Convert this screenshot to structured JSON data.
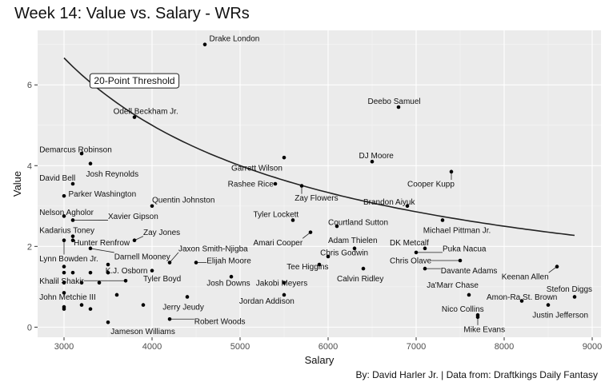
{
  "chart_data": {
    "type": "scatter",
    "title": "Week 14: Value vs. Salary - WRs",
    "caption": "By: David Harler Jr. | Data from: Draftkings Daily Fantasy",
    "xlabel": "Salary",
    "ylabel": "Value",
    "xlim": [
      2700,
      9100
    ],
    "ylim": [
      -0.25,
      7.35
    ],
    "x_ticks": [
      3000,
      4000,
      5000,
      6000,
      7000,
      8000,
      9000
    ],
    "y_ticks": [
      0,
      2,
      4,
      6
    ],
    "grid": true,
    "threshold": {
      "label": "20-Point Threshold",
      "points": 20,
      "x_range": [
        3000,
        8800
      ],
      "label_at": [
        3800,
        6.1
      ]
    },
    "points": [
      {
        "name": "Drake London",
        "x": 4600,
        "y": 7.0,
        "lx": 4650,
        "ly": 7.15
      },
      {
        "name": "Deebo Samuel",
        "x": 6800,
        "y": 5.45,
        "lx": 6450,
        "ly": 5.6
      },
      {
        "name": "Odell Beckham Jr.",
        "x": 3800,
        "y": 5.2,
        "lx": 3560,
        "ly": 5.35
      },
      {
        "name": "Demarcus Robinson",
        "x": 3200,
        "y": 4.3,
        "lx": 2720,
        "ly": 4.4
      },
      {
        "name": "DJ Moore",
        "x": 6500,
        "y": 4.1,
        "lx": 6350,
        "ly": 4.25
      },
      {
        "name": "Garrett Wilson",
        "x": 5500,
        "y": 4.2,
        "lx": 4900,
        "ly": 3.95
      },
      {
        "name": "Josh Reynolds",
        "x": 3300,
        "y": 4.05,
        "lx": 3250,
        "ly": 3.8
      },
      {
        "name": "Cooper Kupp",
        "x": 7400,
        "y": 3.85,
        "lx": 6900,
        "ly": 3.55
      },
      {
        "name": "David Bell",
        "x": 3100,
        "y": 3.55,
        "lx": 2720,
        "ly": 3.7
      },
      {
        "name": "Rashee Rice",
        "x": 5400,
        "y": 3.55,
        "lx": 4860,
        "ly": 3.55
      },
      {
        "name": "Zay Flowers",
        "x": 5700,
        "y": 3.5,
        "lx": 5620,
        "ly": 3.2
      },
      {
        "name": "Parker Washington",
        "x": 3000,
        "y": 3.25,
        "lx": 3050,
        "ly": 3.3
      },
      {
        "name": "Quentin Johnston",
        "x": 4000,
        "y": 3.0,
        "lx": 4000,
        "ly": 3.15
      },
      {
        "name": "Brandon Aiyuk",
        "x": 6900,
        "y": 3.0,
        "lx": 6400,
        "ly": 3.1
      },
      {
        "name": "Nelson Agholor",
        "x": 3000,
        "y": 2.75,
        "lx": 2720,
        "ly": 2.85
      },
      {
        "name": "Xavier Gipson",
        "x": 3100,
        "y": 2.65,
        "lx": 3500,
        "ly": 2.75
      },
      {
        "name": "Tyler Lockett",
        "x": 5600,
        "y": 2.65,
        "lx": 5150,
        "ly": 2.8
      },
      {
        "name": "Michael Pittman Jr.",
        "x": 7300,
        "y": 2.65,
        "lx": 7080,
        "ly": 2.4
      },
      {
        "name": "Courtland Sutton",
        "x": 6100,
        "y": 2.5,
        "lx": 6000,
        "ly": 2.6
      },
      {
        "name": "Kadarius Toney",
        "x": 3100,
        "y": 2.25,
        "lx": 2720,
        "ly": 2.4
      },
      {
        "name": "Zay Jones",
        "x": 3800,
        "y": 2.15,
        "lx": 3900,
        "ly": 2.35
      },
      {
        "name": "Amari Cooper",
        "x": 5800,
        "y": 2.35,
        "lx": 5150,
        "ly": 2.1
      },
      {
        "name": "Adam Thielen",
        "x": 6300,
        "y": 1.95,
        "lx": 6000,
        "ly": 2.15
      },
      {
        "name": "DK Metcalf",
        "x": 7100,
        "y": 1.95,
        "lx": 6700,
        "ly": 2.1
      },
      {
        "name": "Hunter Renfrow",
        "x": 3100,
        "y": 2.15,
        "lx": 3110,
        "ly": 2.1
      },
      {
        "name": "Puka Nacua",
        "x": 7000,
        "y": 1.85,
        "lx": 7300,
        "ly": 1.95
      },
      {
        "name": "Jaxon Smith-Njigba",
        "x": 4200,
        "y": 1.6,
        "lx": 4300,
        "ly": 1.95
      },
      {
        "name": "Chris Godwin",
        "x": 6000,
        "y": 1.75,
        "lx": 5910,
        "ly": 1.85
      },
      {
        "name": "Darnell Mooney",
        "x": 3300,
        "y": 1.95,
        "lx": 3570,
        "ly": 1.75
      },
      {
        "name": "Lynn Bowden Jr.",
        "x": 3000,
        "y": 2.15,
        "lx": 2720,
        "ly": 1.7
      },
      {
        "name": "Elijah Moore",
        "x": 4500,
        "y": 1.6,
        "lx": 4620,
        "ly": 1.65
      },
      {
        "name": "Chris Olave",
        "x": 7500,
        "y": 1.65,
        "lx": 6700,
        "ly": 1.65
      },
      {
        "name": "Tee Higgins",
        "x": 5900,
        "y": 1.55,
        "lx": 5530,
        "ly": 1.5
      },
      {
        "name": "K.J. Osborn",
        "x": 3500,
        "y": 1.55,
        "lx": 3470,
        "ly": 1.4
      },
      {
        "name": "Davante Adams",
        "x": 7100,
        "y": 1.45,
        "lx": 7280,
        "ly": 1.4
      },
      {
        "name": "Keenan Allen",
        "x": 8600,
        "y": 1.5,
        "lx": 7970,
        "ly": 1.25
      },
      {
        "name": "Calvin Ridley",
        "x": 6400,
        "y": 1.45,
        "lx": 6100,
        "ly": 1.2
      },
      {
        "name": "Tyler Boyd",
        "x": 4000,
        "y": 1.4,
        "lx": 3900,
        "ly": 1.2
      },
      {
        "name": "Khalil Shakir",
        "x": 3700,
        "y": 1.15,
        "lx": 2720,
        "ly": 1.15
      },
      {
        "name": "Josh Downs",
        "x": 4900,
        "y": 1.25,
        "lx": 4620,
        "ly": 1.1
      },
      {
        "name": "Jakobi Meyers",
        "x": 5500,
        "y": 1.1,
        "lx": 5180,
        "ly": 1.1
      },
      {
        "name": "Ja'Marr Chase",
        "x": 7600,
        "y": 0.8,
        "lx": 7120,
        "ly": 1.05
      },
      {
        "name": "Stefon Diggs",
        "x": 8800,
        "y": 0.75,
        "lx": 8480,
        "ly": 0.95
      },
      {
        "name": "Amon-Ra St. Brown",
        "x": 8200,
        "y": 0.65,
        "lx": 7800,
        "ly": 0.75
      },
      {
        "name": "John Metchie III",
        "x": 3000,
        "y": 0.85,
        "lx": 2720,
        "ly": 0.75
      },
      {
        "name": "Jordan Addison",
        "x": 5500,
        "y": 0.8,
        "lx": 4990,
        "ly": 0.65
      },
      {
        "name": "Jerry Jeudy",
        "x": 4400,
        "y": 0.75,
        "lx": 4120,
        "ly": 0.5
      },
      {
        "name": "Nico Collins",
        "x": 7700,
        "y": 0.25,
        "lx": 7290,
        "ly": 0.45
      },
      {
        "name": "Justin Jefferson",
        "x": 8500,
        "y": 0.55,
        "lx": 8320,
        "ly": 0.3
      },
      {
        "name": "Robert Woods",
        "x": 4200,
        "y": 0.2,
        "lx": 4480,
        "ly": 0.15
      },
      {
        "name": "Jameson Williams",
        "x": 3500,
        "y": 0.12,
        "lx": 3530,
        "ly": -0.1
      },
      {
        "name": "Mike Evans",
        "x": 7700,
        "y": 0.3,
        "lx": 7540,
        "ly": -0.05
      }
    ],
    "extra_points": [
      {
        "x": 3000,
        "y": 1.5
      },
      {
        "x": 3000,
        "y": 1.35
      },
      {
        "x": 3000,
        "y": 1.1
      },
      {
        "x": 3000,
        "y": 0.5
      },
      {
        "x": 3000,
        "y": 0.45
      },
      {
        "x": 3100,
        "y": 1.35
      },
      {
        "x": 3200,
        "y": 1.1
      },
      {
        "x": 3200,
        "y": 0.55
      },
      {
        "x": 3300,
        "y": 0.45
      },
      {
        "x": 3300,
        "y": 1.35
      },
      {
        "x": 3400,
        "y": 1.1
      },
      {
        "x": 3500,
        "y": 1.35
      },
      {
        "x": 3600,
        "y": 0.8
      },
      {
        "x": 3900,
        "y": 0.55
      }
    ]
  }
}
